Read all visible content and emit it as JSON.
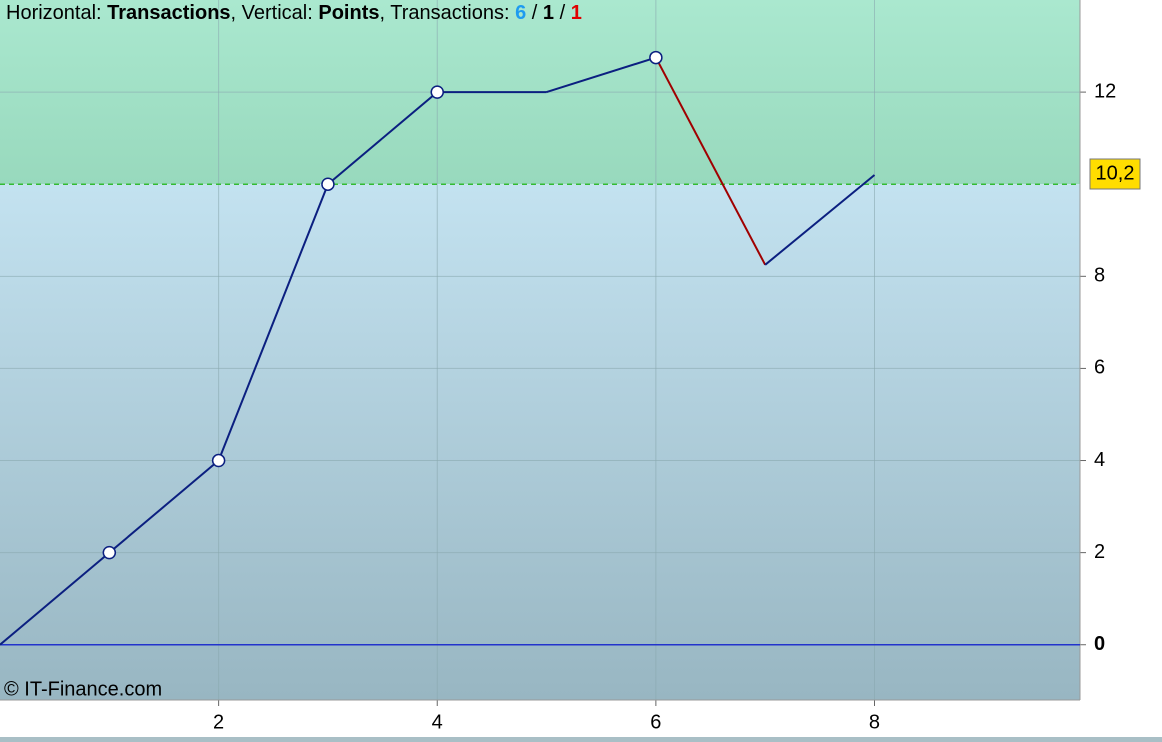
{
  "chart_data": {
    "type": "line",
    "title_parts": [
      {
        "text": "Horizontal: "
      },
      {
        "text": "Transactions",
        "bold": true
      },
      {
        "text": ", Vertical: "
      },
      {
        "text": "Points",
        "bold": true
      },
      {
        "text": ", Transactions: "
      },
      {
        "text": "6",
        "bold": true,
        "color": "#1e9bf0"
      },
      {
        "text": " / "
      },
      {
        "text": "1",
        "bold": true
      },
      {
        "text": " / "
      },
      {
        "text": "1",
        "bold": true,
        "color": "#e00000"
      }
    ],
    "copyright": "© IT-Finance.com",
    "series": [
      {
        "x": [
          0,
          1,
          2,
          3,
          4,
          5,
          6,
          7,
          8
        ],
        "values": [
          0,
          2,
          4,
          10,
          12,
          12,
          12.75,
          8.25,
          10.2
        ],
        "value_labels": [
          null,
          null,
          null,
          null,
          null,
          null,
          null,
          null,
          "10,2"
        ],
        "color": "#0b1f80",
        "down_color": "#a00000"
      }
    ],
    "xlim": [
      0,
      9.88
    ],
    "ylim": [
      -1.2,
      14
    ],
    "xticks": [
      2,
      4,
      6,
      8
    ],
    "yticks": [
      0,
      2,
      4,
      6,
      8,
      12
    ],
    "threshold": {
      "value": 10,
      "color": "#33bb33"
    },
    "zero_line_color": "#2233cc",
    "grid": true
  }
}
